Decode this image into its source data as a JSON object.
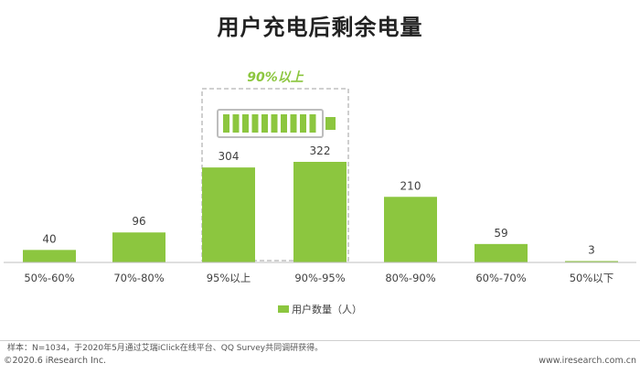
{
  "title": "用户充电后剩余电量",
  "legend_label": "用户数量（人）",
  "source_note": "样本：N=1034，于2020年5月通过艾瑞iClick在线平台、QQ Survey共同调研获得。",
  "copyright": "©2020.6 iResearch Inc.",
  "website": "www.iresearch.com.cn",
  "callout_label": "90%以上",
  "colors": {
    "bar": "#8cc63f",
    "axis": "#bfbfbf",
    "callout_border": "#b5b5b5"
  },
  "icons": [
    "battery-icon"
  ],
  "chart_data": {
    "type": "bar",
    "categories": [
      "50%-60%",
      "70%-80%",
      "95%以上",
      "90%-95%",
      "80%-90%",
      "60%-70%",
      "50%以下"
    ],
    "series": [
      {
        "name": "用户数量（人）",
        "values": [
          40,
          96,
          304,
          322,
          210,
          59,
          3
        ]
      }
    ],
    "ylim": [
      0,
      322
    ],
    "grid": false,
    "legend_position": "bottom"
  }
}
